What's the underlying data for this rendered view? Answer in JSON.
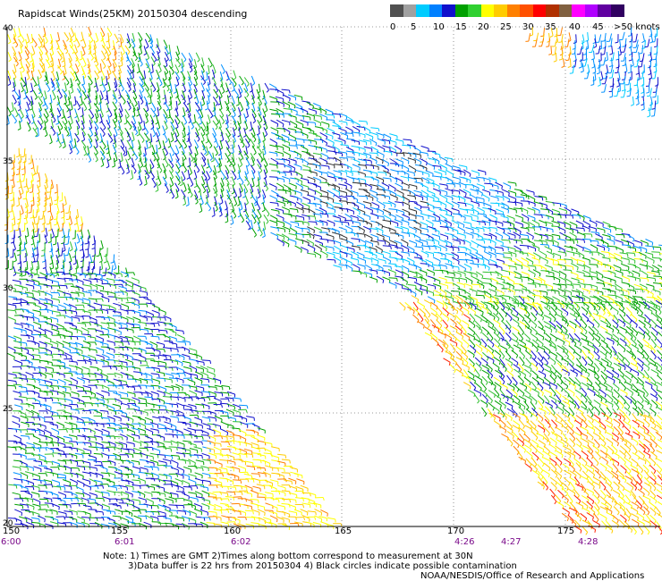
{
  "title": "Rapidscat Winds(25KM) 20150304 descending",
  "colorbar": {
    "colors": [
      "#505050",
      "#a0a0a0",
      "#00ccff",
      "#0080ff",
      "#1010cc",
      "#00a000",
      "#30d030",
      "#ffff00",
      "#ffcc00",
      "#ff8000",
      "#ff5000",
      "#ff0000",
      "#b03000",
      "#806040",
      "#ff00ff",
      "#b000ff",
      "#6000a0",
      "#300060"
    ],
    "labels": [
      "0",
      "5",
      "10",
      "15",
      "20",
      "25",
      "30",
      "35",
      "40",
      "45",
      ">50 knots"
    ]
  },
  "axes": {
    "lon_labels": [
      "150",
      "155",
      "160",
      "165",
      "170",
      "175"
    ],
    "lat_labels": [
      "40",
      "35",
      "30",
      "25",
      "20"
    ]
  },
  "times": [
    "6:00",
    "6:01",
    "6:02",
    "4:26",
    "4:27",
    "4:28"
  ],
  "notes": {
    "line1": "Note: 1) Times are GMT 2)Times along bottom correspond to measurement at 30N",
    "line2": "3)Data buffer is 22 hrs from 20150304 4) Black circles indicate possible contamination",
    "credit": "NOAA/NESDIS/Office of Research and Applications"
  }
}
